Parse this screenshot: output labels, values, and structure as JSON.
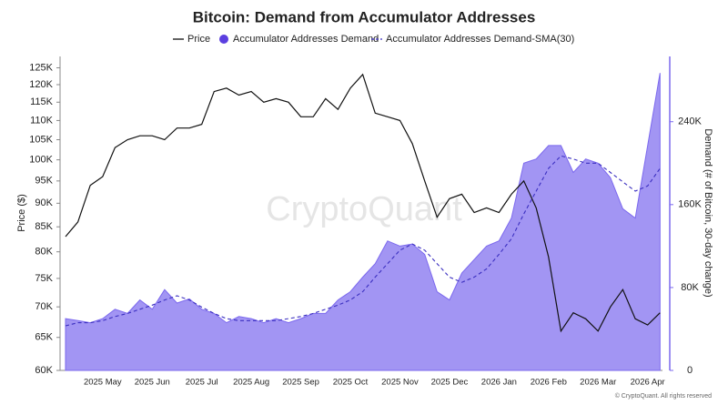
{
  "chart_data": {
    "type": "line",
    "title": "Bitcoin: Demand from Accumulator Addresses",
    "y_label": "Price ($)",
    "y2_label": "Demand (# of Bitcoin, 30-day change)",
    "watermark": "CryptoQuant",
    "footer": "© CryptoQuant. All rights reserved",
    "categories": [
      null,
      null,
      null,
      "2025 May",
      null,
      null,
      null,
      "2025 Jun",
      null,
      null,
      null,
      "2025 Jul",
      null,
      null,
      null,
      "2025 Aug",
      null,
      null,
      null,
      "2025 Sep",
      null,
      null,
      null,
      "2025 Oct",
      null,
      null,
      null,
      "2025 Nov",
      null,
      null,
      null,
      "2025 Dec",
      null,
      null,
      null,
      "2026 Jan",
      null,
      null,
      null,
      "2026 Feb",
      null,
      null,
      null,
      "2026 Mar",
      null,
      null,
      null,
      "2026 Apr",
      null
    ],
    "series": [
      {
        "name": "Price",
        "color": "#111111",
        "kind": "line",
        "axis": "y",
        "values": [
          83000,
          86000,
          94000,
          96000,
          103000,
          105000,
          106000,
          106000,
          105000,
          108000,
          108000,
          109000,
          118000,
          119000,
          117000,
          118000,
          115000,
          116000,
          115000,
          111000,
          111000,
          116000,
          113000,
          119000,
          123000,
          112000,
          111000,
          110000,
          104000,
          95000,
          87000,
          91000,
          92000,
          88000,
          89000,
          88000,
          92000,
          95000,
          89000,
          79000,
          66000,
          69000,
          68000,
          66000,
          70000,
          73000,
          68000,
          67000,
          69000
        ]
      },
      {
        "name": "Accumulator Addresses Demand",
        "color": "#7b68ee",
        "kind": "area",
        "axis": "y2",
        "values": [
          50000,
          48000,
          46000,
          50000,
          59000,
          55000,
          68000,
          59000,
          78000,
          65000,
          69000,
          59000,
          55000,
          46000,
          52000,
          50000,
          46000,
          50000,
          46000,
          50000,
          55000,
          55000,
          68000,
          76000,
          90000,
          103000,
          125000,
          120000,
          122000,
          112000,
          76000,
          68000,
          94000,
          107000,
          120000,
          125000,
          147000,
          200000,
          204000,
          217000,
          217000,
          191000,
          204000,
          200000,
          186000,
          156000,
          147000,
          217000,
          287000
        ]
      },
      {
        "name": "Accumulator Addresses Demand-SMA(30)",
        "color": "#3b2fc0",
        "kind": "dashed",
        "axis": "y2",
        "values": [
          43000,
          46000,
          46000,
          48000,
          52000,
          55000,
          59000,
          63000,
          68000,
          72000,
          68000,
          61000,
          55000,
          50000,
          48000,
          48000,
          48000,
          48000,
          50000,
          52000,
          55000,
          59000,
          63000,
          68000,
          76000,
          90000,
          103000,
          116000,
          122000,
          116000,
          103000,
          90000,
          85000,
          90000,
          98000,
          112000,
          127000,
          151000,
          173000,
          195000,
          207000,
          204000,
          200000,
          200000,
          191000,
          182000,
          173000,
          178000,
          195000
        ]
      }
    ],
    "ylog": true,
    "ylim": [
      60000,
      128500
    ],
    "yticks": [
      {
        "value": 60000,
        "label": "60K"
      },
      {
        "value": 65000,
        "label": "65K"
      },
      {
        "value": 70000,
        "label": "70K"
      },
      {
        "value": 75000,
        "label": "75K"
      },
      {
        "value": 80000,
        "label": "80K"
      },
      {
        "value": 85000,
        "label": "85K"
      },
      {
        "value": 90000,
        "label": "90K"
      },
      {
        "value": 95000,
        "label": "95K"
      },
      {
        "value": 100000,
        "label": "100K"
      },
      {
        "value": 105000,
        "label": "105K"
      },
      {
        "value": 110000,
        "label": "110K"
      },
      {
        "value": 115000,
        "label": "115K"
      },
      {
        "value": 120000,
        "label": "120K"
      },
      {
        "value": 125000,
        "label": "125K"
      }
    ],
    "y2lim": [
      0,
      303000
    ],
    "y2ticks": [
      0,
      {
        "value": 80000,
        "label": "80K"
      },
      {
        "value": 160000,
        "label": "160K"
      },
      {
        "value": 240000,
        "label": "240K"
      }
    ],
    "legend": "top"
  }
}
